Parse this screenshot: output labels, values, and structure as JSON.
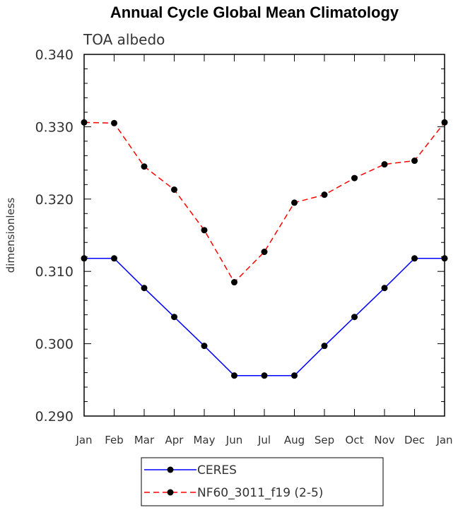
{
  "chart_data": {
    "type": "line",
    "title": "Annual Cycle Global Mean Climatology",
    "subtitle": "TOA albedo",
    "xlabel": "",
    "ylabel": "dimensionless",
    "categories": [
      "Jan",
      "Feb",
      "Mar",
      "Apr",
      "May",
      "Jun",
      "Jul",
      "Aug",
      "Sep",
      "Oct",
      "Nov",
      "Dec",
      "Jan"
    ],
    "ylim": [
      0.29,
      0.34
    ],
    "yticks": [
      0.29,
      0.3,
      0.31,
      0.32,
      0.33,
      0.34
    ],
    "ytick_labels": [
      "0.290",
      "0.300",
      "0.310",
      "0.320",
      "0.330",
      "0.340"
    ],
    "series": [
      {
        "name": "CERES",
        "color": "#0000ff",
        "style": "solid",
        "values": [
          0.3118,
          0.3118,
          0.3077,
          0.3037,
          0.2997,
          0.2956,
          0.2956,
          0.2956,
          0.2997,
          0.3037,
          0.3077,
          0.3118,
          0.3118
        ]
      },
      {
        "name": "NF60_3011_f19 (2-5)",
        "color": "#ff0000",
        "style": "dashed",
        "values": [
          0.3306,
          0.3305,
          0.3245,
          0.3213,
          0.3157,
          0.3085,
          0.3127,
          0.3195,
          0.3206,
          0.3229,
          0.3248,
          0.3253,
          0.3306
        ]
      }
    ],
    "legend_position": "bottom-center"
  }
}
